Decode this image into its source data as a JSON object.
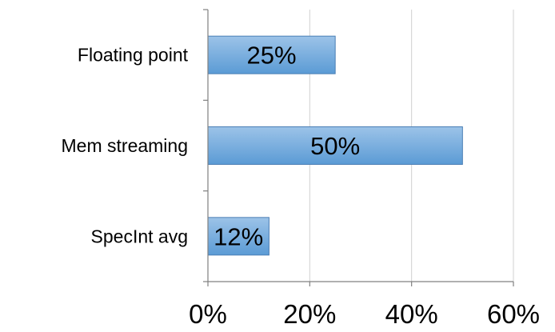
{
  "chart_data": {
    "type": "bar",
    "orientation": "horizontal",
    "categories": [
      "Floating point",
      "Mem streaming",
      "SpecInt avg"
    ],
    "values": [
      25,
      50,
      12
    ],
    "data_labels": [
      "25%",
      "50%",
      "12%"
    ],
    "x_ticks": [
      0,
      20,
      40,
      60
    ],
    "x_tick_labels": [
      "0%",
      "20%",
      "40%",
      "60%"
    ],
    "xlim": [
      0,
      60
    ],
    "grid": true,
    "bar_color": "#5b9bd5",
    "bar_color_light": "#9cc3e8",
    "bar_edge_color": "#4a7eb5",
    "grid_color": "#d0d0d0",
    "axis_color": "#808080"
  }
}
